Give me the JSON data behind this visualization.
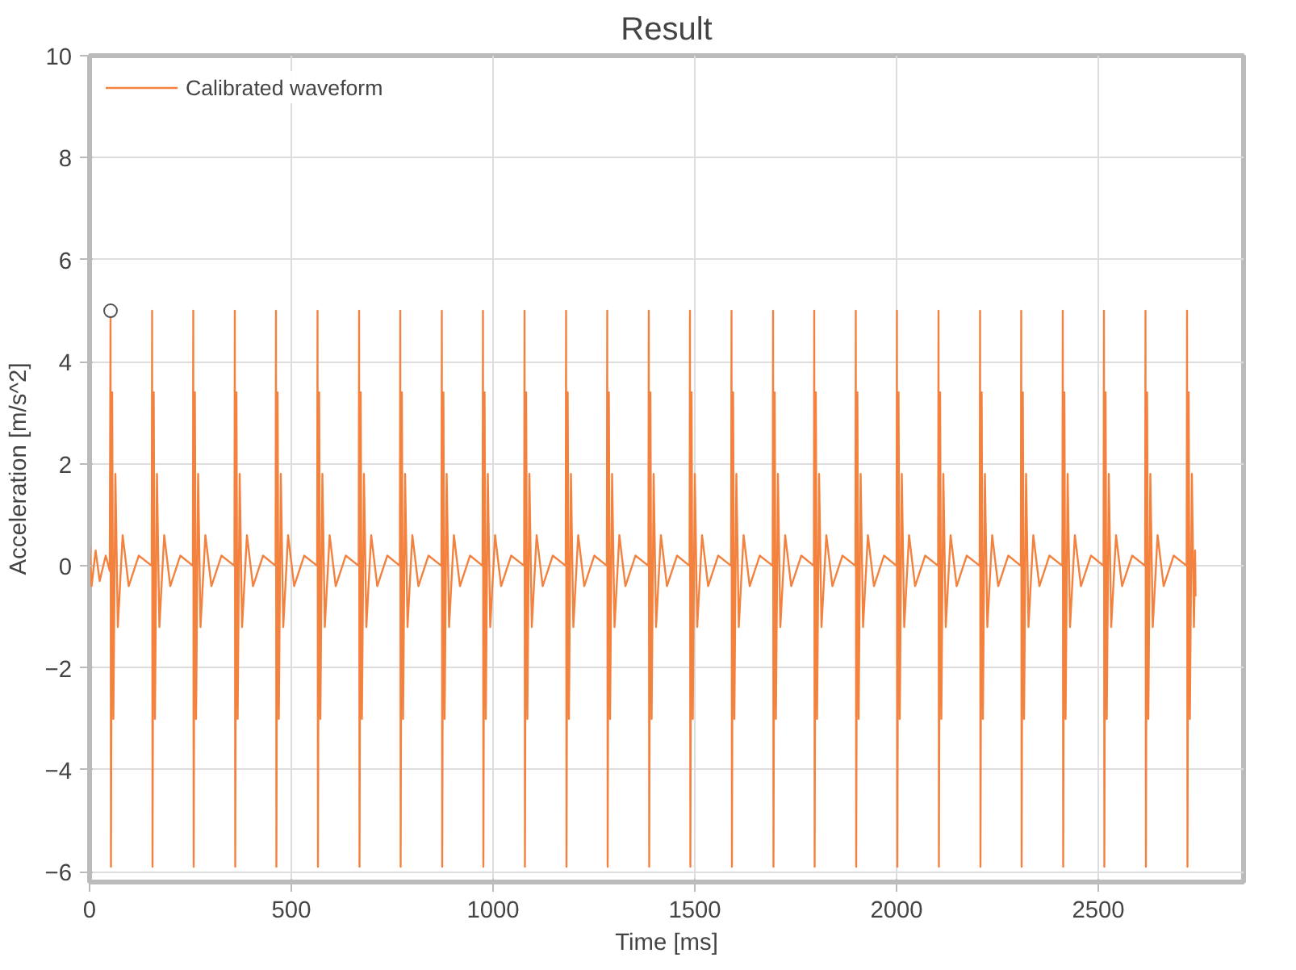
{
  "chart_data": {
    "type": "line",
    "title": "Result",
    "xlabel": "Time [ms]",
    "ylabel": "Acceleration [m/s^2]",
    "xlim": [
      0,
      2860
    ],
    "ylim": [
      -6.2,
      10
    ],
    "xticks": [
      0,
      500,
      1000,
      1500,
      2000,
      2500
    ],
    "yticks": [
      -6,
      -4,
      -2,
      0,
      2,
      4,
      6,
      8,
      10
    ],
    "grid": true,
    "legend": "top left",
    "series": [
      {
        "name": "Calibrated waveform",
        "color": "#f4823f",
        "x": [
          0,
          5,
          15,
          25,
          40,
          50,
          52,
          53,
          56,
          59,
          64,
          70,
          82,
          97,
          122,
          154,
          155,
          156,
          159,
          162,
          167,
          173,
          185,
          200,
          225,
          256,
          257,
          258,
          261,
          264,
          269,
          275,
          287,
          302,
          327,
          359,
          360,
          361,
          364,
          367,
          372,
          378,
          390,
          405,
          430,
          461,
          462,
          463,
          466,
          469,
          474,
          480,
          492,
          507,
          532,
          564,
          565,
          566,
          569,
          572,
          577,
          583,
          595,
          610,
          635,
          667,
          668,
          669,
          672,
          675,
          680,
          686,
          698,
          713,
          738,
          769,
          770,
          771,
          774,
          777,
          782,
          788,
          800,
          815,
          840,
          872,
          873,
          874,
          877,
          880,
          885,
          891,
          903,
          918,
          943,
          974,
          975,
          976,
          979,
          982,
          987,
          993,
          1005,
          1020,
          1045,
          1077,
          1078,
          1079,
          1082,
          1085,
          1090,
          1096,
          1108,
          1123,
          1148,
          1180,
          1181,
          1182,
          1185,
          1188,
          1193,
          1199,
          1211,
          1226,
          1251,
          1282,
          1283,
          1284,
          1287,
          1290,
          1295,
          1301,
          1313,
          1328,
          1353,
          1385,
          1386,
          1387,
          1390,
          1393,
          1398,
          1404,
          1416,
          1431,
          1456,
          1487,
          1488,
          1489,
          1492,
          1495,
          1500,
          1506,
          1518,
          1533,
          1558,
          1590,
          1591,
          1592,
          1595,
          1598,
          1603,
          1609,
          1621,
          1636,
          1661,
          1693,
          1694,
          1695,
          1698,
          1701,
          1706,
          1712,
          1724,
          1739,
          1764,
          1795,
          1796,
          1797,
          1800,
          1803,
          1808,
          1814,
          1826,
          1841,
          1866,
          1898,
          1899,
          1900,
          1903,
          1906,
          1911,
          1917,
          1929,
          1944,
          1969,
          2000,
          2001,
          2002,
          2005,
          2008,
          2013,
          2019,
          2031,
          2046,
          2071,
          2103,
          2104,
          2105,
          2108,
          2111,
          2116,
          2122,
          2134,
          2149,
          2174,
          2206,
          2207,
          2208,
          2211,
          2214,
          2219,
          2225,
          2237,
          2252,
          2277,
          2308,
          2309,
          2310,
          2313,
          2316,
          2321,
          2327,
          2339,
          2354,
          2379,
          2411,
          2412,
          2413,
          2416,
          2419,
          2424,
          2430,
          2442,
          2457,
          2482,
          2513,
          2514,
          2515,
          2518,
          2521,
          2526,
          2532,
          2544,
          2559,
          2584,
          2616,
          2617,
          2618,
          2621,
          2624,
          2629,
          2635,
          2647,
          2662,
          2687,
          2719,
          2720,
          2721,
          2724,
          2727,
          2732,
          2737,
          2740,
          2741
        ],
        "values": [
          0.4,
          -0.4,
          0.3,
          -0.3,
          0.2,
          -0.1,
          5,
          -5.9,
          3.4,
          -3,
          1.8,
          -1.2,
          0.6,
          -0.4,
          0.2,
          0,
          5,
          -5.9,
          3.4,
          -3,
          1.8,
          -1.2,
          0.6,
          -0.4,
          0.2,
          0,
          5,
          -5.9,
          3.4,
          -3,
          1.8,
          -1.2,
          0.6,
          -0.4,
          0.2,
          0,
          5,
          -5.9,
          3.4,
          -3,
          1.8,
          -1.2,
          0.6,
          -0.4,
          0.2,
          0,
          5,
          -5.9,
          3.4,
          -3,
          1.8,
          -1.2,
          0.6,
          -0.4,
          0.2,
          0,
          5,
          -5.9,
          3.4,
          -3,
          1.8,
          -1.2,
          0.6,
          -0.4,
          0.2,
          0,
          5,
          -5.9,
          3.4,
          -3,
          1.8,
          -1.2,
          0.6,
          -0.4,
          0.2,
          0,
          5,
          -5.9,
          3.4,
          -3,
          1.8,
          -1.2,
          0.6,
          -0.4,
          0.2,
          0,
          5,
          -5.9,
          3.4,
          -3,
          1.8,
          -1.2,
          0.6,
          -0.4,
          0.2,
          0,
          5,
          -5.9,
          3.4,
          -3,
          1.8,
          -1.2,
          0.6,
          -0.4,
          0.2,
          0,
          5,
          -5.9,
          3.4,
          -3,
          1.8,
          -1.2,
          0.6,
          -0.4,
          0.2,
          0,
          5,
          -5.9,
          3.4,
          -3,
          1.8,
          -1.2,
          0.6,
          -0.4,
          0.2,
          0,
          5,
          -5.9,
          3.4,
          -3,
          1.8,
          -1.2,
          0.6,
          -0.4,
          0.2,
          0,
          5,
          -5.9,
          3.4,
          -3,
          1.8,
          -1.2,
          0.6,
          -0.4,
          0.2,
          0,
          5,
          -5.9,
          3.4,
          -3,
          1.8,
          -1.2,
          0.6,
          -0.4,
          0.2,
          0,
          5,
          -5.9,
          3.4,
          -3,
          1.8,
          -1.2,
          0.6,
          -0.4,
          0.2,
          0,
          5,
          -5.9,
          3.4,
          -3,
          1.8,
          -1.2,
          0.6,
          -0.4,
          0.2,
          0,
          5,
          -5.9,
          3.4,
          -3,
          1.8,
          -1.2,
          0.6,
          -0.4,
          0.2,
          0,
          5,
          -5.9,
          3.4,
          -3,
          1.8,
          -1.2,
          0.6,
          -0.4,
          0.2,
          0,
          5,
          -5.9,
          3.4,
          -3,
          1.8,
          -1.2,
          0.6,
          -0.4,
          0.2,
          0,
          5,
          -5.9,
          3.4,
          -3,
          1.8,
          -1.2,
          0.6,
          -0.4,
          0.2,
          0,
          5,
          -5.9,
          3.4,
          -3,
          1.8,
          -1.2,
          0.6,
          -0.4,
          0.2,
          0,
          5,
          -5.9,
          3.4,
          -3,
          1.8,
          -1.2,
          0.6,
          -0.4,
          0.2,
          0,
          5,
          -5.9,
          3.4,
          -3,
          1.8,
          -1.2,
          0.6,
          -0.4,
          0.2,
          0,
          5,
          -5.9,
          3.4,
          -3,
          1.8,
          -1.2,
          0.6,
          -0.4,
          0.2,
          0,
          5,
          -5.9,
          3.4,
          -3,
          1.8,
          -1.2,
          0.6,
          -0.4,
          0.2,
          0,
          5,
          -5.9,
          3.4,
          -3,
          1.8,
          -1.2,
          0.3,
          -0.6
        ]
      },
      {
        "color": "#555555",
        "type": "scatter",
        "marker": "circle",
        "x": [
          52
        ],
        "values": [
          5
        ]
      }
    ]
  }
}
